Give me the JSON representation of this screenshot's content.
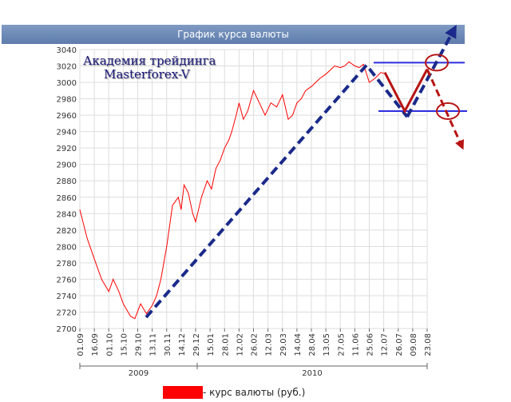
{
  "chart_data": {
    "type": "line",
    "title": "График курса валюты",
    "ylim": [
      2700,
      3040
    ],
    "yticks": [
      2700,
      2720,
      2740,
      2760,
      2780,
      2800,
      2820,
      2840,
      2860,
      2880,
      2900,
      2920,
      2940,
      2960,
      2980,
      3000,
      3020,
      3040
    ],
    "xticks": [
      "01.09",
      "16.09",
      "01.10",
      "15.10",
      "29.10",
      "13.11",
      "30.11",
      "14.12",
      "29.12",
      "15.01",
      "28.01",
      "12.02",
      "26.02",
      "12.03",
      "29.03",
      "14.04",
      "28.04",
      "13.05",
      "27.05",
      "11.06",
      "25.06",
      "12.07",
      "26.07",
      "09.08",
      "23.08"
    ],
    "year_labels": [
      "2009",
      "2010"
    ],
    "grid": true,
    "series": [
      {
        "name": "курс валюты (руб.)",
        "color": "#ff0000",
        "x": [
          0,
          0.5,
          1,
          1.5,
          2,
          2.3,
          2.7,
          3,
          3.5,
          3.8,
          4.2,
          4.6,
          5,
          5.3,
          5.6,
          6,
          6.4,
          6.8,
          7,
          7.2,
          7.5,
          7.8,
          8,
          8.4,
          8.8,
          9.1,
          9.4,
          9.7,
          10,
          10.3,
          10.5,
          10.8,
          11,
          11.3,
          11.6,
          12,
          12.4,
          12.8,
          13.2,
          13.6,
          14,
          14.4,
          14.7,
          15,
          15.3,
          15.6,
          16,
          16.3,
          16.6,
          17,
          17.3,
          17.6,
          18,
          18.3,
          18.6,
          19,
          19.3,
          19.6,
          20,
          20.4,
          20.8,
          21.2
        ],
        "values": [
          2845,
          2810,
          2785,
          2760,
          2745,
          2760,
          2745,
          2730,
          2715,
          2712,
          2730,
          2718,
          2728,
          2740,
          2760,
          2800,
          2850,
          2860,
          2845,
          2875,
          2865,
          2840,
          2830,
          2860,
          2880,
          2870,
          2895,
          2905,
          2920,
          2930,
          2940,
          2960,
          2975,
          2955,
          2965,
          2990,
          2975,
          2960,
          2975,
          2970,
          2985,
          2955,
          2960,
          2975,
          2980,
          2990,
          2995,
          3000,
          3005,
          3010,
          3015,
          3020,
          3018,
          3020,
          3025,
          3020,
          3018,
          3022,
          3000,
          3005,
          3012,
          3010
        ]
      }
    ]
  },
  "overlay": {
    "line1": "Академия трейдинга",
    "line2": "Masterforex-V"
  },
  "legend": {
    "label": "- курс валюты (руб.)"
  },
  "colors": {
    "forecast_blue": "#1b2a8a",
    "forecast_red": "#b81414",
    "level_line": "#2d2de0"
  }
}
